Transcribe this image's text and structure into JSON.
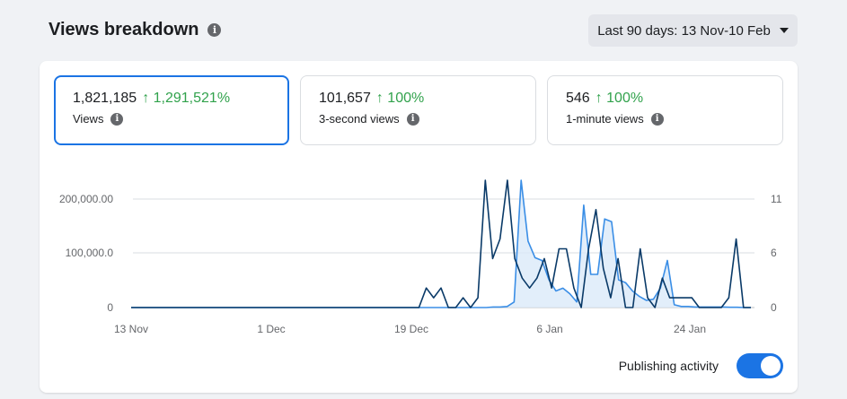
{
  "header": {
    "title": "Views breakdown",
    "date_range_label": "Last 90 days: 13 Nov-10 Feb"
  },
  "metrics": [
    {
      "value": "1,821,185",
      "delta": "↑ 1,291,521%",
      "label": "Views"
    },
    {
      "value": "101,657",
      "delta": "↑ 100%",
      "label": "3-second views"
    },
    {
      "value": "546",
      "delta": "↑ 100%",
      "label": "1-minute views"
    }
  ],
  "publishing_activity": {
    "label": "Publishing activity",
    "enabled": true
  },
  "colors": {
    "views": "#3a8ee6",
    "publishing": "#0a3a68",
    "area": "#dbeaf9",
    "accent": "#1b74e4"
  },
  "chart_data": {
    "type": "line",
    "x_ticks": [
      "13 Nov",
      "1 Dec",
      "19 Dec",
      "6 Jan",
      "24 Jan"
    ],
    "y_left_ticks": [
      "200,000.00",
      "100,000.0",
      "0"
    ],
    "y_right_ticks": [
      "11",
      "6",
      "0"
    ],
    "ylim_left": [
      0,
      230000
    ],
    "ylim_right": [
      0,
      13
    ],
    "series": [
      {
        "name": "Views",
        "values": [
          0,
          0,
          0,
          0,
          0,
          0,
          0,
          0,
          0,
          0,
          0,
          0,
          0,
          0,
          0,
          0,
          0,
          0,
          0,
          0,
          0,
          0,
          0,
          0,
          0,
          0,
          0,
          0,
          0,
          0,
          0,
          0,
          0,
          0,
          0,
          0,
          0,
          0,
          0,
          0,
          0,
          0,
          0,
          0,
          0,
          0,
          0,
          0,
          0,
          0,
          0,
          0,
          1000,
          1000,
          2000,
          10000,
          230000,
          120000,
          90000,
          85000,
          50000,
          30000,
          35000,
          25000,
          10000,
          185000,
          60000,
          60000,
          160000,
          155000,
          50000,
          45000,
          30000,
          20000,
          13000,
          15000,
          35000,
          85000,
          5000,
          2000,
          2000,
          1000,
          1000,
          1000,
          1000,
          1000,
          500,
          500,
          0,
          0
        ]
      },
      {
        "name": "Publishing activity",
        "values": [
          0,
          0,
          0,
          0,
          0,
          0,
          0,
          0,
          0,
          0,
          0,
          0,
          0,
          0,
          0,
          0,
          0,
          0,
          0,
          0,
          0,
          0,
          0,
          0,
          0,
          0,
          0,
          0,
          0,
          0,
          0,
          0,
          0,
          0,
          0,
          0,
          0,
          0,
          0,
          0,
          2,
          1,
          2,
          0,
          0,
          1,
          0,
          1,
          13,
          5,
          7,
          13,
          5,
          3,
          2,
          3,
          5,
          2,
          6,
          6,
          2,
          0,
          6,
          10,
          4,
          1,
          5,
          0,
          0,
          6,
          1,
          0,
          3,
          1,
          1,
          1,
          1,
          0,
          0,
          0,
          0,
          1,
          7,
          0,
          0
        ]
      }
    ]
  }
}
